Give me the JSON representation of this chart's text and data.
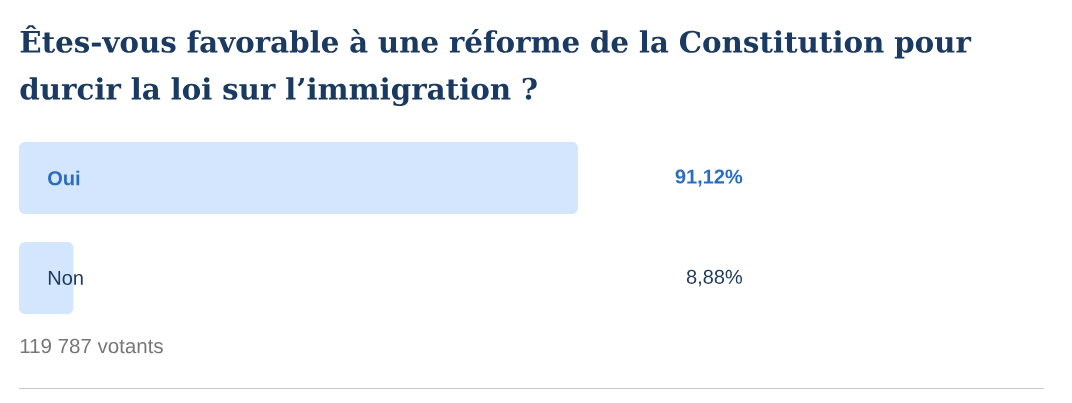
{
  "chart_data": {
    "type": "bar",
    "orientation": "horizontal",
    "title": "Êtes-vous favorable à une réforme de la Constitution pour durcir la loi sur l’immigration ?",
    "categories": [
      "Oui",
      "Non"
    ],
    "values": [
      91.12,
      8.88
    ],
    "value_labels": [
      "91,12%",
      "8,88%"
    ],
    "color": "#d3e6fd",
    "tick_labels": false,
    "annotations": [
      "119 787 votants"
    ]
  }
}
